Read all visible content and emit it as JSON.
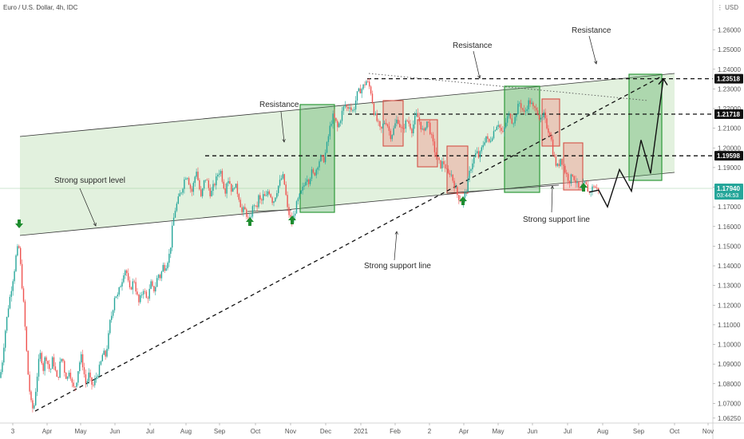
{
  "header": {
    "title": "Euro / U.S. Dollar, 4h, IDC",
    "currency": "USD"
  },
  "chart_data": {
    "type": "candlestick",
    "title": "Euro / U.S. Dollar, 4h, IDC",
    "y_ticks": [
      "1.26000",
      "1.25000",
      "1.24000",
      "1.23000",
      "1.22000",
      "1.21000",
      "1.20000",
      "1.19000",
      "1.18000",
      "1.17000",
      "1.16000",
      "1.15000",
      "1.14000",
      "1.13000",
      "1.12000",
      "1.11000",
      "1.10000",
      "1.09000",
      "1.08000",
      "1.07000",
      "1.06250"
    ],
    "ylim": [
      1.06,
      1.272
    ],
    "x_ticks": [
      "3",
      "Apr",
      "May",
      "Jun",
      "Jul",
      "Aug",
      "Sep",
      "Oct",
      "Nov",
      "Dec",
      "2021",
      "Feb",
      "2",
      "Apr",
      "May",
      "Jun",
      "Jul",
      "Aug",
      "Sep",
      "Oct",
      "Nov"
    ],
    "price_labels": [
      {
        "value": "1.23518",
        "price": 1.23518
      },
      {
        "value": "1.21718",
        "price": 1.21718
      },
      {
        "value": "1.19598",
        "price": 1.19598
      },
      {
        "value": "1.17940",
        "price": 1.1794,
        "extra": "03:44:53"
      }
    ],
    "price_path": [
      [
        0,
        1.083
      ],
      [
        3,
        1.092
      ],
      [
        6,
        1.105
      ],
      [
        10,
        1.118
      ],
      [
        14,
        1.128
      ],
      [
        18,
        1.138
      ],
      [
        21,
        1.148
      ],
      [
        24,
        1.149
      ],
      [
        27,
        1.133
      ],
      [
        30,
        1.118
      ],
      [
        33,
        1.098
      ],
      [
        36,
        1.08
      ],
      [
        39,
        1.07
      ],
      [
        42,
        1.066
      ],
      [
        45,
        1.078
      ],
      [
        48,
        1.09
      ],
      [
        51,
        1.096
      ],
      [
        54,
        1.087
      ],
      [
        57,
        1.095
      ],
      [
        60,
        1.09
      ],
      [
        63,
        1.086
      ],
      [
        66,
        1.093
      ],
      [
        69,
        1.087
      ],
      [
        72,
        1.081
      ],
      [
        75,
        1.09
      ],
      [
        78,
        1.094
      ],
      [
        81,
        1.086
      ],
      [
        84,
        1.082
      ],
      [
        87,
        1.088
      ],
      [
        90,
        1.08
      ],
      [
        93,
        1.077
      ],
      [
        96,
        1.082
      ],
      [
        99,
        1.09
      ],
      [
        102,
        1.094
      ],
      [
        105,
        1.086
      ],
      [
        108,
        1.079
      ],
      [
        111,
        1.085
      ],
      [
        114,
        1.08
      ],
      [
        117,
        1.079
      ],
      [
        120,
        1.083
      ],
      [
        123,
        1.086
      ],
      [
        126,
        1.09
      ],
      [
        129,
        1.096
      ],
      [
        132,
        1.094
      ],
      [
        135,
        1.101
      ],
      [
        138,
        1.112
      ],
      [
        141,
        1.117
      ],
      [
        144,
        1.126
      ],
      [
        147,
        1.124
      ],
      [
        150,
        1.129
      ],
      [
        153,
        1.133
      ],
      [
        156,
        1.139
      ],
      [
        159,
        1.136
      ],
      [
        162,
        1.127
      ],
      [
        165,
        1.13
      ],
      [
        168,
        1.133
      ],
      [
        171,
        1.126
      ],
      [
        174,
        1.121
      ],
      [
        177,
        1.125
      ],
      [
        180,
        1.129
      ],
      [
        183,
        1.123
      ],
      [
        186,
        1.125
      ],
      [
        189,
        1.131
      ],
      [
        192,
        1.127
      ],
      [
        195,
        1.13
      ],
      [
        198,
        1.136
      ],
      [
        201,
        1.134
      ],
      [
        204,
        1.14
      ],
      [
        207,
        1.139
      ],
      [
        210,
        1.143
      ],
      [
        213,
        1.147
      ],
      [
        216,
        1.16
      ],
      [
        219,
        1.168
      ],
      [
        222,
        1.172
      ],
      [
        225,
        1.176
      ],
      [
        228,
        1.179
      ],
      [
        231,
        1.184
      ],
      [
        234,
        1.187
      ],
      [
        237,
        1.182
      ],
      [
        240,
        1.177
      ],
      [
        243,
        1.183
      ],
      [
        246,
        1.189
      ],
      [
        249,
        1.181
      ],
      [
        252,
        1.174
      ],
      [
        255,
        1.182
      ],
      [
        258,
        1.185
      ],
      [
        261,
        1.18
      ],
      [
        264,
        1.176
      ],
      [
        267,
        1.18
      ],
      [
        270,
        1.183
      ],
      [
        273,
        1.187
      ],
      [
        276,
        1.189
      ],
      [
        279,
        1.183
      ],
      [
        282,
        1.178
      ],
      [
        285,
        1.185
      ],
      [
        288,
        1.182
      ],
      [
        291,
        1.177
      ],
      [
        294,
        1.182
      ],
      [
        297,
        1.178
      ],
      [
        300,
        1.174
      ],
      [
        303,
        1.167
      ],
      [
        306,
        1.169
      ],
      [
        309,
        1.166
      ],
      [
        312,
        1.162
      ],
      [
        315,
        1.167
      ],
      [
        318,
        1.172
      ],
      [
        321,
        1.168
      ],
      [
        324,
        1.175
      ],
      [
        327,
        1.172
      ],
      [
        330,
        1.176
      ],
      [
        333,
        1.174
      ],
      [
        336,
        1.179
      ],
      [
        339,
        1.176
      ],
      [
        342,
        1.172
      ],
      [
        345,
        1.176
      ],
      [
        348,
        1.18
      ],
      [
        351,
        1.183
      ],
      [
        354,
        1.186
      ],
      [
        357,
        1.18
      ],
      [
        360,
        1.169
      ],
      [
        363,
        1.165
      ],
      [
        366,
        1.162
      ],
      [
        369,
        1.167
      ],
      [
        372,
        1.172
      ],
      [
        375,
        1.175
      ],
      [
        378,
        1.178
      ],
      [
        381,
        1.181
      ],
      [
        384,
        1.186
      ],
      [
        387,
        1.183
      ],
      [
        390,
        1.188
      ],
      [
        393,
        1.186
      ],
      [
        396,
        1.189
      ],
      [
        399,
        1.193
      ],
      [
        402,
        1.195
      ],
      [
        405,
        1.193
      ],
      [
        408,
        1.198
      ],
      [
        411,
        1.205
      ],
      [
        414,
        1.212
      ],
      [
        417,
        1.216
      ],
      [
        420,
        1.214
      ],
      [
        423,
        1.21
      ],
      [
        426,
        1.214
      ],
      [
        429,
        1.219
      ],
      [
        432,
        1.222
      ],
      [
        435,
        1.22
      ],
      [
        438,
        1.222
      ],
      [
        441,
        1.218
      ],
      [
        444,
        1.221
      ],
      [
        447,
        1.227
      ],
      [
        450,
        1.229
      ],
      [
        453,
        1.23
      ],
      [
        456,
        1.232
      ],
      [
        459,
        1.234
      ],
      [
        462,
        1.232
      ],
      [
        465,
        1.228
      ],
      [
        468,
        1.219
      ],
      [
        471,
        1.215
      ],
      [
        474,
        1.212
      ],
      [
        477,
        1.208
      ],
      [
        480,
        1.212
      ],
      [
        483,
        1.214
      ],
      [
        486,
        1.211
      ],
      [
        489,
        1.206
      ],
      [
        492,
        1.208
      ],
      [
        495,
        1.212
      ],
      [
        498,
        1.215
      ],
      [
        501,
        1.211
      ],
      [
        504,
        1.208
      ],
      [
        507,
        1.212
      ],
      [
        510,
        1.214
      ],
      [
        513,
        1.212
      ],
      [
        516,
        1.209
      ],
      [
        519,
        1.214
      ],
      [
        522,
        1.217
      ],
      [
        525,
        1.214
      ],
      [
        528,
        1.21
      ],
      [
        531,
        1.207
      ],
      [
        534,
        1.214
      ],
      [
        537,
        1.212
      ],
      [
        540,
        1.206
      ],
      [
        543,
        1.201
      ],
      [
        546,
        1.196
      ],
      [
        549,
        1.193
      ],
      [
        552,
        1.191
      ],
      [
        555,
        1.193
      ],
      [
        558,
        1.19
      ],
      [
        561,
        1.186
      ],
      [
        564,
        1.188
      ],
      [
        567,
        1.184
      ],
      [
        570,
        1.18
      ],
      [
        573,
        1.176
      ],
      [
        576,
        1.174
      ],
      [
        579,
        1.172
      ],
      [
        582,
        1.176
      ],
      [
        585,
        1.18
      ],
      [
        588,
        1.187
      ],
      [
        591,
        1.192
      ],
      [
        594,
        1.195
      ],
      [
        597,
        1.198
      ],
      [
        600,
        1.195
      ],
      [
        603,
        1.199
      ],
      [
        606,
        1.203
      ],
      [
        609,
        1.206
      ],
      [
        612,
        1.202
      ],
      [
        615,
        1.205
      ],
      [
        618,
        1.208
      ],
      [
        621,
        1.211
      ],
      [
        624,
        1.213
      ],
      [
        627,
        1.209
      ],
      [
        630,
        1.207
      ],
      [
        633,
        1.212
      ],
      [
        636,
        1.216
      ],
      [
        639,
        1.217
      ],
      [
        642,
        1.213
      ],
      [
        645,
        1.215
      ],
      [
        648,
        1.22
      ],
      [
        651,
        1.223
      ],
      [
        654,
        1.22
      ],
      [
        657,
        1.217
      ],
      [
        660,
        1.221
      ],
      [
        663,
        1.224
      ],
      [
        666,
        1.222
      ],
      [
        669,
        1.219
      ],
      [
        672,
        1.221
      ],
      [
        675,
        1.216
      ],
      [
        678,
        1.213
      ],
      [
        681,
        1.217
      ],
      [
        684,
        1.212
      ],
      [
        687,
        1.209
      ],
      [
        690,
        1.206
      ],
      [
        693,
        1.197
      ],
      [
        696,
        1.192
      ],
      [
        699,
        1.19
      ],
      [
        702,
        1.195
      ],
      [
        705,
        1.192
      ],
      [
        708,
        1.188
      ],
      [
        711,
        1.185
      ],
      [
        714,
        1.183
      ],
      [
        717,
        1.187
      ],
      [
        720,
        1.184
      ],
      [
        723,
        1.181
      ],
      [
        726,
        1.178
      ],
      [
        729,
        1.179
      ],
      [
        732,
        1.182
      ],
      [
        735,
        1.18
      ],
      [
        738,
        1.177
      ],
      [
        741,
        1.179
      ],
      [
        744,
        1.181
      ],
      [
        747,
        1.179
      ],
      [
        750,
        1.1794
      ]
    ],
    "projection": [
      [
        738,
        1.1775
      ],
      [
        750,
        1.1785
      ],
      [
        761,
        1.17
      ],
      [
        776,
        1.189
      ],
      [
        791,
        1.178
      ],
      [
        803,
        1.204
      ],
      [
        815,
        1.187
      ],
      [
        831,
        1.2352
      ]
    ],
    "annotations": [
      {
        "text": "Strong support level"
      },
      {
        "text": "Resistance"
      },
      {
        "text": "Resistance"
      },
      {
        "text": "Resistance"
      },
      {
        "text": "Strong support line"
      },
      {
        "text": "Strong support line"
      }
    ],
    "levels": [
      1.23518,
      1.21718,
      1.19598
    ],
    "grid": false,
    "legend": "none"
  }
}
